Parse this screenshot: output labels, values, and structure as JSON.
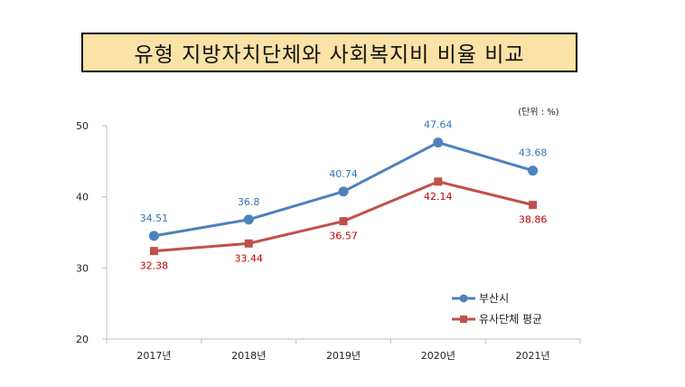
{
  "title": "유형 지방자치단체와 사회복지비 비율 비교",
  "unit_label": "(단위 : %)",
  "colors": {
    "title_bg": "#fbe2a6",
    "series_blue": "#4f81bd",
    "series_red": "#c0504d",
    "label_blue": "#2e75b6",
    "label_red": "#c00000"
  },
  "chart_data": {
    "type": "line",
    "title": "유형 지방자치단체와 사회복지비 비율 비교",
    "xlabel": "",
    "ylabel": "",
    "categories": [
      "2017년",
      "2018년",
      "2019년",
      "2020년",
      "2021년"
    ],
    "y_ticks": [
      20,
      30,
      40,
      50
    ],
    "ylim": [
      20,
      50
    ],
    "grid": false,
    "legend_position": "bottom-right",
    "series": [
      {
        "name": "부산시",
        "values": [
          34.51,
          36.8,
          40.74,
          47.64,
          43.68
        ],
        "data_labels": [
          "34.51",
          "36.8",
          "40.74",
          "47.64",
          "43.68"
        ],
        "color": "#4f81bd",
        "marker": "circle"
      },
      {
        "name": "유사단체 평균",
        "values": [
          32.38,
          33.44,
          36.57,
          42.14,
          38.86
        ],
        "data_labels": [
          "32.38",
          "33.44",
          "36.57",
          "42.14",
          "38.86"
        ],
        "color": "#c0504d",
        "marker": "square"
      }
    ]
  }
}
